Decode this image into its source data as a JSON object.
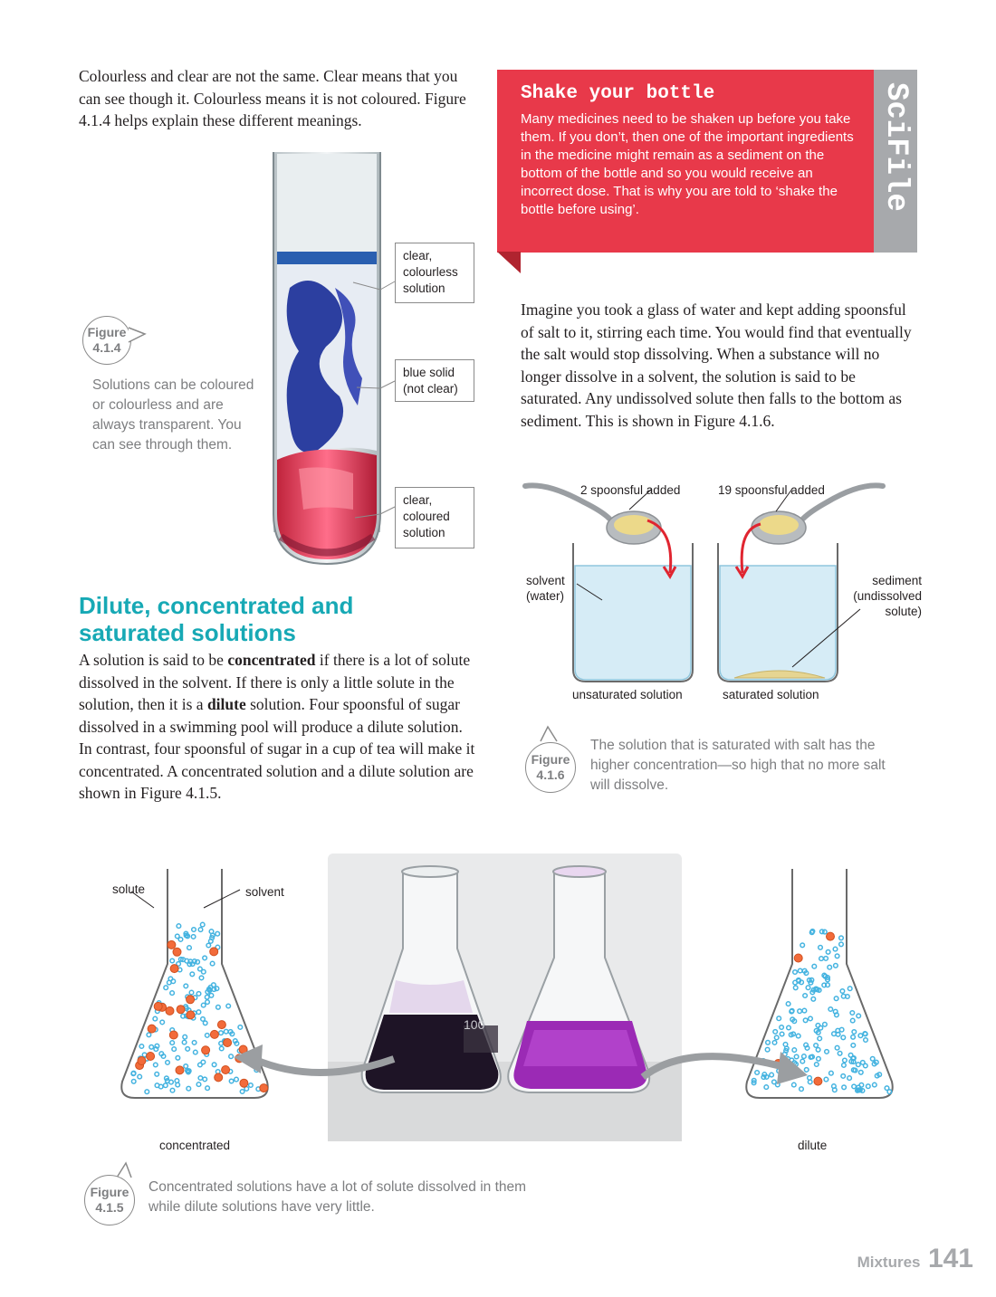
{
  "intro_paragraph": "Colourless and clear are not the same. Clear means that you can see though it. Colourless means it is not coloured. Figure 4.1.4 helps explain these different meanings.",
  "figure_414": {
    "badge_line1": "Figure",
    "badge_line2": "4.1.4",
    "caption": "Solutions can be coloured or colourless and are always transparent. You can see through them.",
    "callout_top": "clear, colourless solution",
    "callout_middle": "blue solid (not clear)",
    "callout_bottom": "clear, coloured solution"
  },
  "scifile": {
    "title": "Shake your bottle",
    "body": "Many medicines need to be shaken up before you take them. If you don’t, then one of the important ingredients in the medicine might remain as a sediment on the bottom of the bottle and so you would receive an incorrect dose. That is why you are told to ‘shake the bottle before using’.",
    "tab_label": "SciFile",
    "colors": {
      "panel": "#e8394a",
      "tab": "#a7a9ac"
    }
  },
  "saturation_paragraph": "Imagine you took a glass of water and kept adding spoonsful of salt to it, stirring each time. You would find that eventually the salt would stop dissolving. When a substance will no longer dissolve in a solvent, the solution is said to be saturated. Any undissolved solute then falls to the bottom as sediment. This is shown in Figure 4.1.6.",
  "figure_416": {
    "label_spoon_left": "2 spoonsful added",
    "label_spoon_right": "19 spoonsful added",
    "label_solvent": "solvent (water)",
    "label_sediment": "sediment (undissolved solute)",
    "label_unsaturated": "unsaturated solution",
    "label_saturated": "saturated solution",
    "badge_line1": "Figure",
    "badge_line2": "4.1.6",
    "caption": "The solution that is saturated with salt has the higher concentration—so high that no more salt will dissolve."
  },
  "section": {
    "heading": "Dilute, concentrated and saturated solutions",
    "p_part1": "A solution is said to be ",
    "p_bold1": "concentrated",
    "p_part2": " if there is a lot of solute dissolved in the solvent. If there is only a little solute in the solution, then it is a ",
    "p_bold2": "dilute",
    "p_part3": " solution. Four spoonsful of sugar dissolved in a swimming pool will produce a dilute solution. In contrast, four spoonsful of sugar in a cup of tea will make it concentrated. A concentrated solution and a dilute solution are shown in Figure 4.1.5."
  },
  "figure_415": {
    "label_solute": "solute",
    "label_solvent": "solvent",
    "label_concentrated": "concentrated",
    "label_dilute": "dilute",
    "flask_mark": "100",
    "badge_line1": "Figure",
    "badge_line2": "4.1.5",
    "caption": "Concentrated solutions have a lot of solute dissolved in them while dilute solutions have very little."
  },
  "footer": {
    "chapter": "Mixtures",
    "page_number": "141"
  }
}
